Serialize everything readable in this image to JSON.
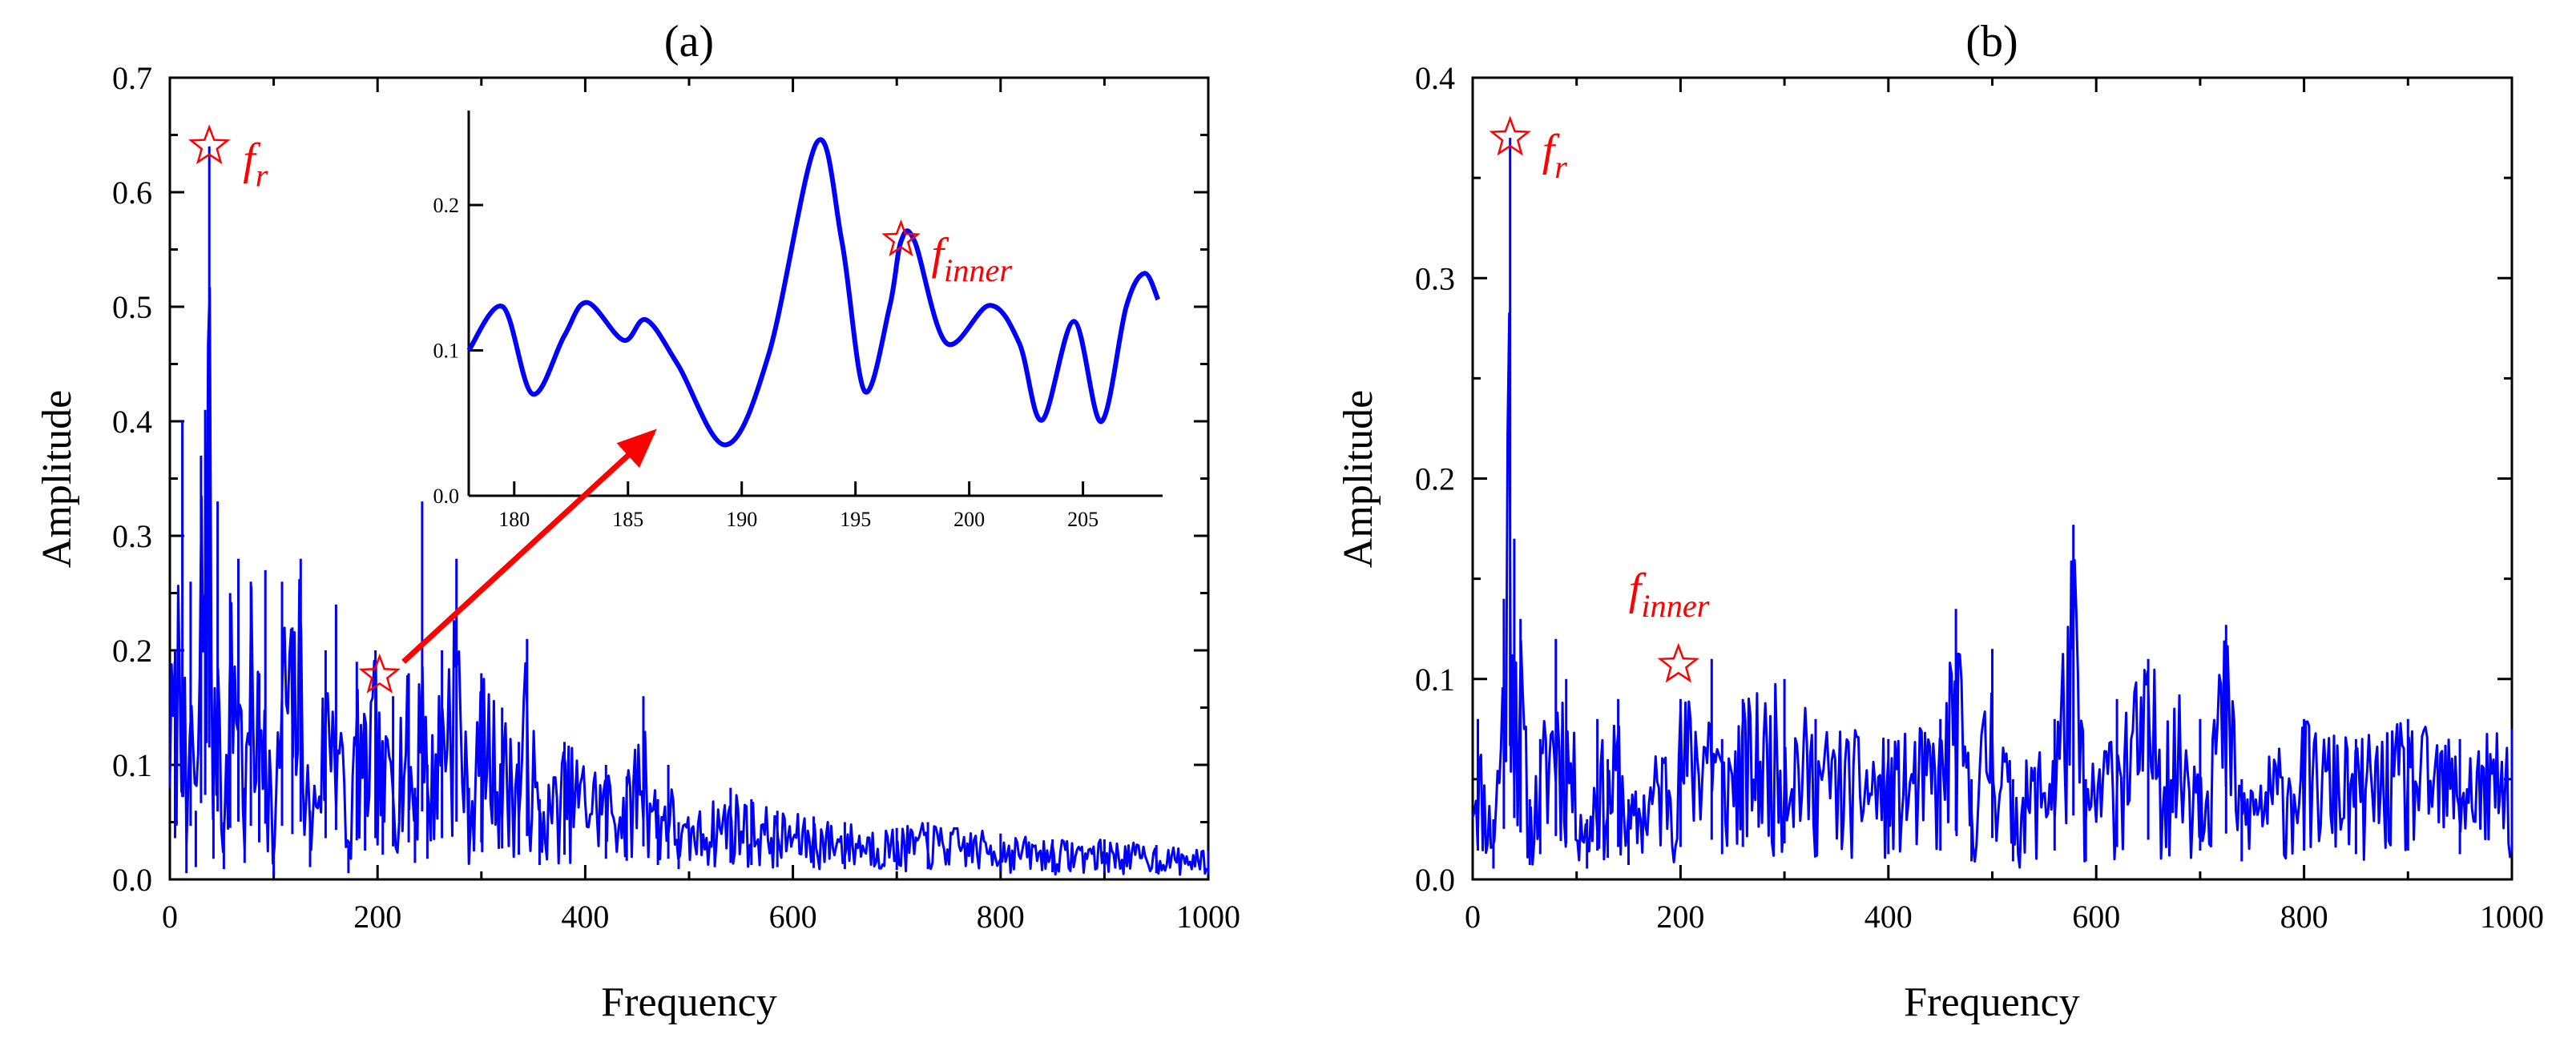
{
  "colors": {
    "series": "#0000ff",
    "annotation": "#ff0000",
    "axis": "#000000"
  },
  "chart_data": [
    {
      "type": "line",
      "panel": "(a)",
      "title": "(a)",
      "xlabel": "Frequency",
      "ylabel": "Amplitude",
      "xlim": [
        0,
        1000
      ],
      "ylim": [
        0,
        0.7
      ],
      "xticks": [
        "0",
        "200",
        "400",
        "600",
        "800",
        "1000"
      ],
      "yticks": [
        "0.0",
        "0.1",
        "0.2",
        "0.3",
        "0.4",
        "0.5",
        "0.6",
        "0.7"
      ],
      "peaks": [
        [
          5,
          0.2
        ],
        [
          12,
          0.4
        ],
        [
          16,
          0.03
        ],
        [
          20,
          0.26
        ],
        [
          25,
          0.06
        ],
        [
          30,
          0.37
        ],
        [
          34,
          0.41
        ],
        [
          38,
          0.64
        ],
        [
          42,
          0.1
        ],
        [
          46,
          0.33
        ],
        [
          52,
          0.05
        ],
        [
          58,
          0.25
        ],
        [
          66,
          0.28
        ],
        [
          72,
          0.08
        ],
        [
          78,
          0.26
        ],
        [
          86,
          0.18
        ],
        [
          92,
          0.27
        ],
        [
          100,
          0.02
        ],
        [
          108,
          0.26
        ],
        [
          118,
          0.22
        ],
        [
          126,
          0.28
        ],
        [
          135,
          0.06
        ],
        [
          150,
          0.2
        ],
        [
          160,
          0.24
        ],
        [
          172,
          0.03
        ],
        [
          180,
          0.19
        ],
        [
          188,
          0.14
        ],
        [
          198,
          0.2
        ],
        [
          205,
          0.12
        ],
        [
          215,
          0.16
        ],
        [
          230,
          0.18
        ],
        [
          236,
          0.08
        ],
        [
          243,
          0.33
        ],
        [
          248,
          0.1
        ],
        [
          262,
          0.2
        ],
        [
          276,
          0.28
        ],
        [
          288,
          0.08
        ],
        [
          300,
          0.18
        ],
        [
          320,
          0.15
        ],
        [
          336,
          0.12
        ],
        [
          344,
          0.21
        ],
        [
          356,
          0.07
        ],
        [
          380,
          0.12
        ],
        [
          420,
          0.1
        ],
        [
          440,
          0.09
        ],
        [
          456,
          0.16
        ],
        [
          470,
          0.07
        ],
        [
          480,
          0.1
        ],
        [
          490,
          0.05
        ],
        [
          540,
          0.08
        ],
        [
          560,
          0.07
        ],
        [
          585,
          0.06
        ],
        [
          620,
          0.055
        ],
        [
          650,
          0.05
        ],
        [
          700,
          0.045
        ],
        [
          730,
          0.05
        ],
        [
          800,
          0.04
        ],
        [
          850,
          0.035
        ],
        [
          900,
          0.035
        ],
        [
          950,
          0.03
        ],
        [
          1000,
          0.025
        ]
      ],
      "annotations": [
        {
          "label": "f",
          "sub": "r",
          "x": 38,
          "y": 0.64
        },
        {
          "x": 202,
          "y": 0.178
        }
      ],
      "arrow": {
        "from": [
          225,
          0.19
        ],
        "to": [
          465,
          0.39
        ]
      },
      "inset": {
        "xlim": [
          178,
          208.5
        ],
        "ylim": [
          0,
          0.265
        ],
        "xticks": [
          "180",
          "185",
          "190",
          "195",
          "200",
          "205"
        ],
        "yticks": [
          "0.0",
          "0.1",
          "0.2"
        ],
        "x": [
          178,
          179.5,
          180.8,
          182.2,
          183.2,
          184.8,
          185.8,
          187.2,
          189.3,
          191.2,
          193.3,
          194.4,
          195.4,
          196.5,
          197,
          197.6,
          199,
          200.9,
          202.2,
          203.2,
          204.6,
          205.8,
          206.9,
          207.7,
          208.3
        ],
        "y": [
          0.1,
          0.13,
          0.07,
          0.11,
          0.133,
          0.107,
          0.121,
          0.09,
          0.035,
          0.098,
          0.243,
          0.175,
          0.072,
          0.13,
          0.175,
          0.175,
          0.105,
          0.131,
          0.105,
          0.052,
          0.12,
          0.051,
          0.13,
          0.153,
          0.135
        ],
        "annotation": {
          "label": "f",
          "sub": "inner",
          "x": 197,
          "y": 0.175
        }
      }
    },
    {
      "type": "line",
      "panel": "(b)",
      "title": "(b)",
      "xlabel": "Frequency",
      "ylabel": "Amplitude",
      "xlim": [
        0,
        1000
      ],
      "ylim": [
        0,
        0.4
      ],
      "xticks": [
        "0",
        "200",
        "400",
        "600",
        "800",
        "1000"
      ],
      "yticks": [
        "0.0",
        "0.1",
        "0.2",
        "0.3",
        "0.4"
      ],
      "peaks": [
        [
          5,
          0.08
        ],
        [
          20,
          0.03
        ],
        [
          30,
          0.14
        ],
        [
          36,
          0.37
        ],
        [
          40,
          0.17
        ],
        [
          46,
          0.13
        ],
        [
          55,
          0.04
        ],
        [
          65,
          0.07
        ],
        [
          80,
          0.12
        ],
        [
          90,
          0.1
        ],
        [
          110,
          0.03
        ],
        [
          120,
          0.08
        ],
        [
          130,
          0.06
        ],
        [
          140,
          0.09
        ],
        [
          150,
          0.04
        ],
        [
          200,
          0.09
        ],
        [
          230,
          0.11
        ],
        [
          240,
          0.07
        ],
        [
          260,
          0.09
        ],
        [
          300,
          0.1
        ],
        [
          330,
          0.08
        ],
        [
          400,
          0.07
        ],
        [
          450,
          0.08
        ],
        [
          465,
          0.135
        ],
        [
          480,
          0.05
        ],
        [
          500,
          0.115
        ],
        [
          520,
          0.05
        ],
        [
          560,
          0.08
        ],
        [
          578,
          0.177
        ],
        [
          590,
          0.05
        ],
        [
          620,
          0.09
        ],
        [
          650,
          0.11
        ],
        [
          700,
          0.08
        ],
        [
          725,
          0.127
        ],
        [
          740,
          0.05
        ],
        [
          800,
          0.08
        ],
        [
          850,
          0.07
        ],
        [
          900,
          0.08
        ],
        [
          950,
          0.07
        ],
        [
          1000,
          0.075
        ]
      ],
      "annotations": [
        {
          "label": "f",
          "sub": "r",
          "x": 36,
          "y": 0.37
        },
        {
          "label": "f",
          "sub": "inner",
          "x": 198,
          "y": 0.107
        }
      ]
    }
  ]
}
